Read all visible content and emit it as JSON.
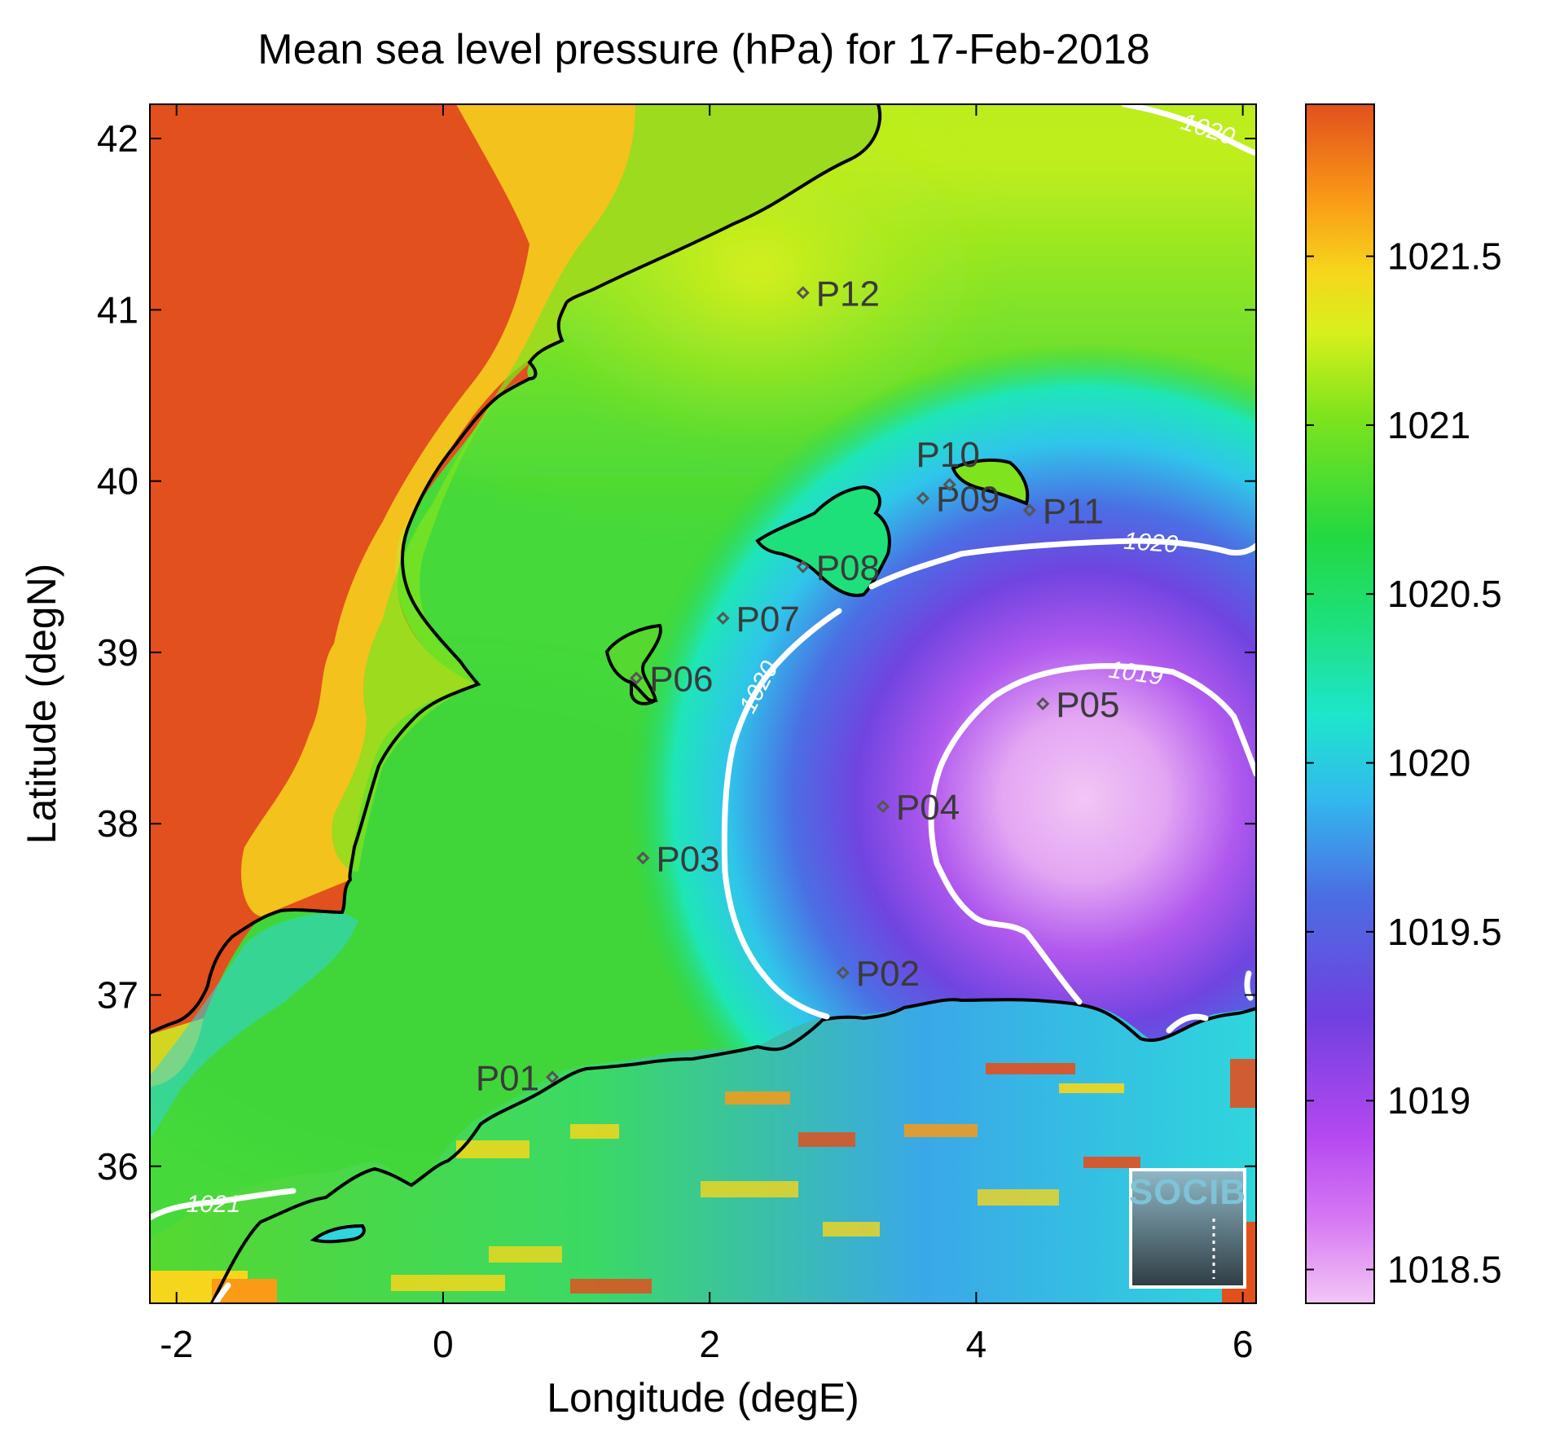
{
  "title": "Mean sea level pressure (hPa) for 17-Feb-2018",
  "axes": {
    "xlabel": "Longitude (degE)",
    "ylabel": "Latitude (degN)",
    "x_ticks": [
      "-2",
      "0",
      "2",
      "4",
      "6"
    ],
    "y_ticks": [
      "36",
      "37",
      "38",
      "39",
      "40",
      "41",
      "42"
    ]
  },
  "colorbar": {
    "ticks": [
      "1018.5",
      "1019",
      "1019.5",
      "1020",
      "1020.5",
      "1021",
      "1021.5"
    ]
  },
  "contour_labels": [
    "1020",
    "1020",
    "1020",
    "1019",
    "1021"
  ],
  "stations": [
    {
      "label": "P01",
      "lon": 0.82,
      "lat": 36.52
    },
    {
      "label": "P02",
      "lon": 3.0,
      "lat": 37.13
    },
    {
      "label": "P03",
      "lon": 1.5,
      "lat": 37.8
    },
    {
      "label": "P04",
      "lon": 3.3,
      "lat": 38.1
    },
    {
      "label": "P05",
      "lon": 4.5,
      "lat": 38.7
    },
    {
      "label": "P06",
      "lon": 1.45,
      "lat": 38.85
    },
    {
      "label": "P07",
      "lon": 2.1,
      "lat": 39.2
    },
    {
      "label": "P08",
      "lon": 2.7,
      "lat": 39.5
    },
    {
      "label": "P09",
      "lon": 3.6,
      "lat": 39.9
    },
    {
      "label": "P10",
      "lon": 3.8,
      "lat": 39.98
    },
    {
      "label": "P11",
      "lon": 4.4,
      "lat": 39.83
    },
    {
      "label": "P12",
      "lon": 2.7,
      "lat": 41.1
    }
  ],
  "logo": {
    "text": "SOCIB"
  },
  "chart_data": {
    "type": "heatmap",
    "title": "Mean sea level pressure (hPa) for 17-Feb-2018",
    "xlabel": "Longitude (degE)",
    "ylabel": "Latitude (degN)",
    "xlim": [
      -2.2,
      6.1
    ],
    "ylim": [
      35.2,
      42.2
    ],
    "colorbar_range": [
      1018.4,
      1021.95
    ],
    "colormap": [
      "#f2c6f5",
      "#c44ef0",
      "#7040e0",
      "#4b6ee3",
      "#33b8ee",
      "#1de6cc",
      "#23d840",
      "#7fe31d",
      "#d8f01c",
      "#f6d61c",
      "#fa9a16",
      "#f56a12",
      "#e2501e"
    ],
    "low_pressure_center": {
      "lon": 4.9,
      "lat": 38.1,
      "value": 1018.5
    },
    "contour_levels": [
      1019,
      1020,
      1021
    ],
    "land_color": "#e2501e",
    "marker_color": "#555555",
    "contour_color": "#ffffff",
    "coast_color": "#000000"
  }
}
